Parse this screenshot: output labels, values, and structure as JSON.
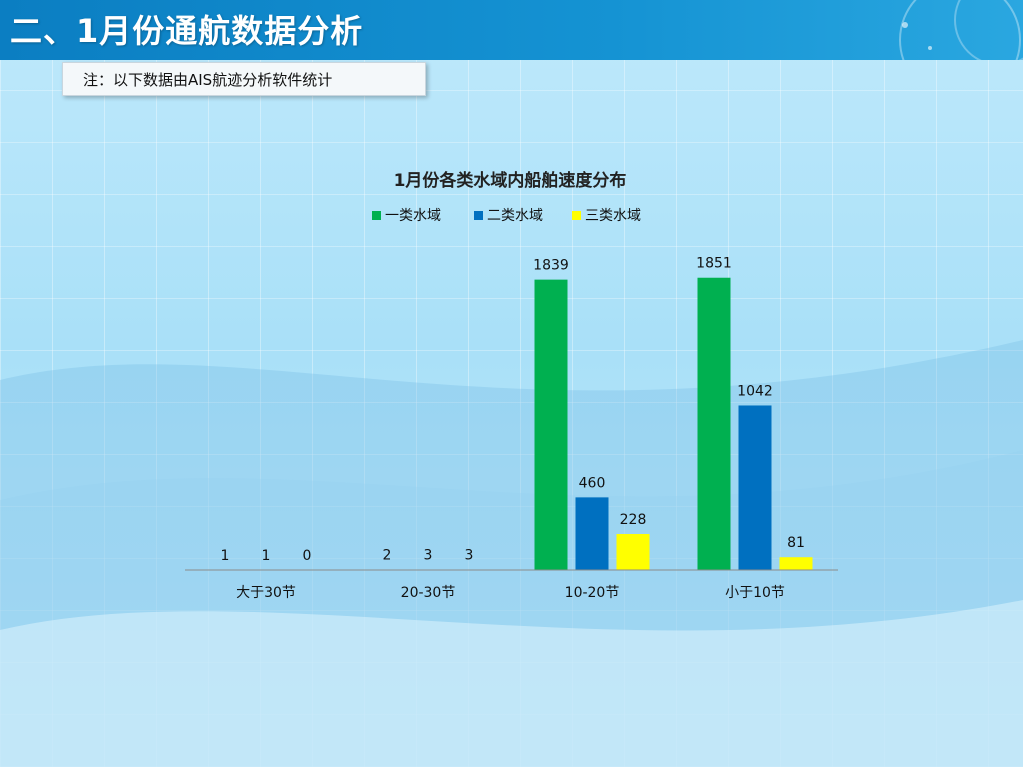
{
  "header": {
    "title": "二、1月份通航数据分析"
  },
  "note": {
    "text": "注：以下数据由AIS航迹分析软件统计"
  },
  "colors": {
    "series_1": "#00b050",
    "series_2": "#0070c0",
    "series_3": "#ffff00",
    "header_bg": "#0b7ec2",
    "background": "#bfe9fb"
  },
  "chart_data": {
    "type": "bar",
    "title": "1月份各类水域内船舶速度分布",
    "categories": [
      "大于30节",
      "20-30节",
      "10-20节",
      "小于10节"
    ],
    "series": [
      {
        "name": "一类水域",
        "values": [
          1,
          2,
          1839,
          1851
        ]
      },
      {
        "name": "二类水域",
        "values": [
          1,
          3,
          460,
          1042
        ]
      },
      {
        "name": "三类水域",
        "values": [
          0,
          3,
          228,
          81
        ]
      }
    ],
    "ylim": [
      0,
      1900
    ],
    "legend_position": "top",
    "grid": false,
    "data_labels": true
  }
}
